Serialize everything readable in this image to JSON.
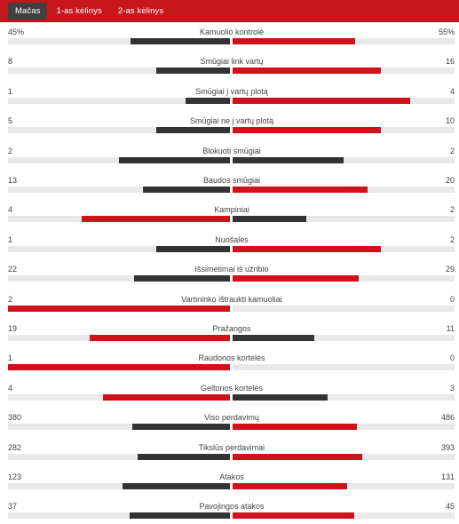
{
  "tabs": [
    {
      "label": "Mačas",
      "active": true
    },
    {
      "label": "1-as kėlinys",
      "active": false
    },
    {
      "label": "2-as kėlinys",
      "active": false
    }
  ],
  "colors": {
    "leader": "#d0101b",
    "trailer": "#333333",
    "track": "#e9e9e9",
    "header": "#c8161d"
  },
  "stats": [
    {
      "label": "Kamuolio kontrolė",
      "home": "45%",
      "away": "55%",
      "home_num": 45,
      "away_num": 55
    },
    {
      "label": "Smūgiai link vartų",
      "home": "8",
      "away": "16",
      "home_num": 8,
      "away_num": 16
    },
    {
      "label": "Smūgiai į vartų plotą",
      "home": "1",
      "away": "4",
      "home_num": 1,
      "away_num": 4
    },
    {
      "label": "Smūgiai ne į vartų plotą",
      "home": "5",
      "away": "10",
      "home_num": 5,
      "away_num": 10
    },
    {
      "label": "Blokuoti smūgiai",
      "home": "2",
      "away": "2",
      "home_num": 2,
      "away_num": 2
    },
    {
      "label": "Baudos smūgiai",
      "home": "13",
      "away": "20",
      "home_num": 13,
      "away_num": 20
    },
    {
      "label": "Kampiniai",
      "home": "4",
      "away": "2",
      "home_num": 4,
      "away_num": 2
    },
    {
      "label": "Nuošalės",
      "home": "1",
      "away": "2",
      "home_num": 1,
      "away_num": 2
    },
    {
      "label": "Išsimetimai iš užribio",
      "home": "22",
      "away": "29",
      "home_num": 22,
      "away_num": 29
    },
    {
      "label": "Vartininko ištraukti kamuoliai",
      "home": "2",
      "away": "0",
      "home_num": 2,
      "away_num": 0
    },
    {
      "label": "Pražangos",
      "home": "19",
      "away": "11",
      "home_num": 19,
      "away_num": 11
    },
    {
      "label": "Raudonos kortelės",
      "home": "1",
      "away": "0",
      "home_num": 1,
      "away_num": 0
    },
    {
      "label": "Geltonos kortelės",
      "home": "4",
      "away": "3",
      "home_num": 4,
      "away_num": 3
    },
    {
      "label": "Viso perdavimų",
      "home": "380",
      "away": "486",
      "home_num": 380,
      "away_num": 486
    },
    {
      "label": "Tikslūs perdavimai",
      "home": "282",
      "away": "393",
      "home_num": 282,
      "away_num": 393
    },
    {
      "label": "Atakos",
      "home": "123",
      "away": "131",
      "home_num": 123,
      "away_num": 131
    },
    {
      "label": "Pavojingos atakos",
      "home": "37",
      "away": "45",
      "home_num": 37,
      "away_num": 45
    }
  ]
}
